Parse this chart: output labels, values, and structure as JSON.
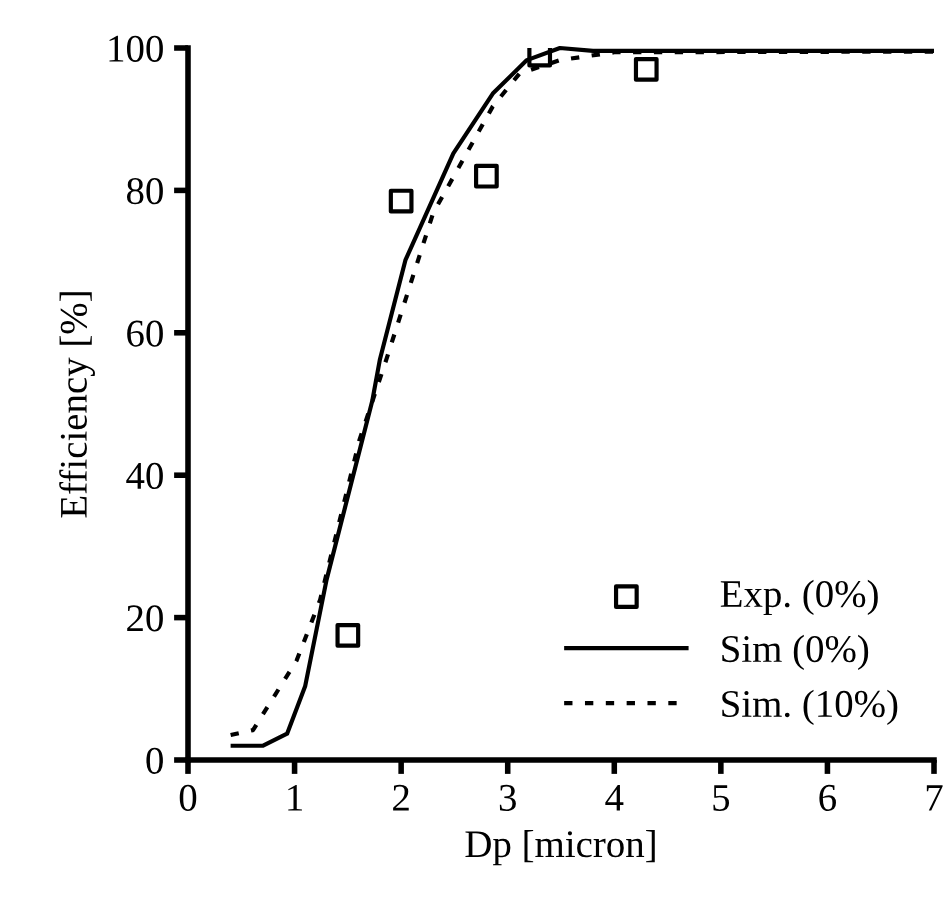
{
  "chart_data": {
    "type": "line",
    "xlabel": "Dp [micron]",
    "ylabel": "Efficiency [%]",
    "xlim": [
      0,
      7
    ],
    "ylim": [
      0,
      100
    ],
    "xticks": [
      0,
      1,
      2,
      3,
      4,
      5,
      6,
      7
    ],
    "yticks": [
      0,
      20,
      40,
      60,
      80,
      100
    ],
    "grid": false,
    "legend": "bottom right",
    "series": [
      {
        "name": "Exp. (0%)",
        "type": "scatter",
        "marker": "square",
        "color": "#000000",
        "x": [
          1.5,
          2.0,
          2.8,
          3.3,
          4.3
        ],
        "values": [
          17.5,
          78.5,
          82,
          99,
          97
        ]
      },
      {
        "name": "Sim (0%)",
        "line_style": "solid",
        "color": "#000000",
        "x": [
          0.4,
          0.7,
          0.93,
          1.1,
          1.3,
          1.73,
          1.8,
          2.04,
          2.49,
          2.86,
          3.18,
          3.49,
          3.8,
          7.0
        ],
        "values": [
          2,
          2,
          3.7,
          10.4,
          25.3,
          50.5,
          56.2,
          70.2,
          85.2,
          93.6,
          98.3,
          100,
          99.6,
          99.6
        ]
      },
      {
        "name": "Sim. (10%)",
        "line_style": "dotted",
        "color": "#000000",
        "x": [
          0.4,
          0.61,
          1.02,
          1.24,
          1.61,
          1.86,
          2.3,
          2.86,
          3.11,
          3.49,
          4.0,
          7.0
        ],
        "values": [
          3.5,
          4.2,
          14,
          22.5,
          45,
          56.2,
          76.8,
          91.8,
          96.4,
          98.3,
          99.4,
          99.5
        ]
      }
    ]
  }
}
